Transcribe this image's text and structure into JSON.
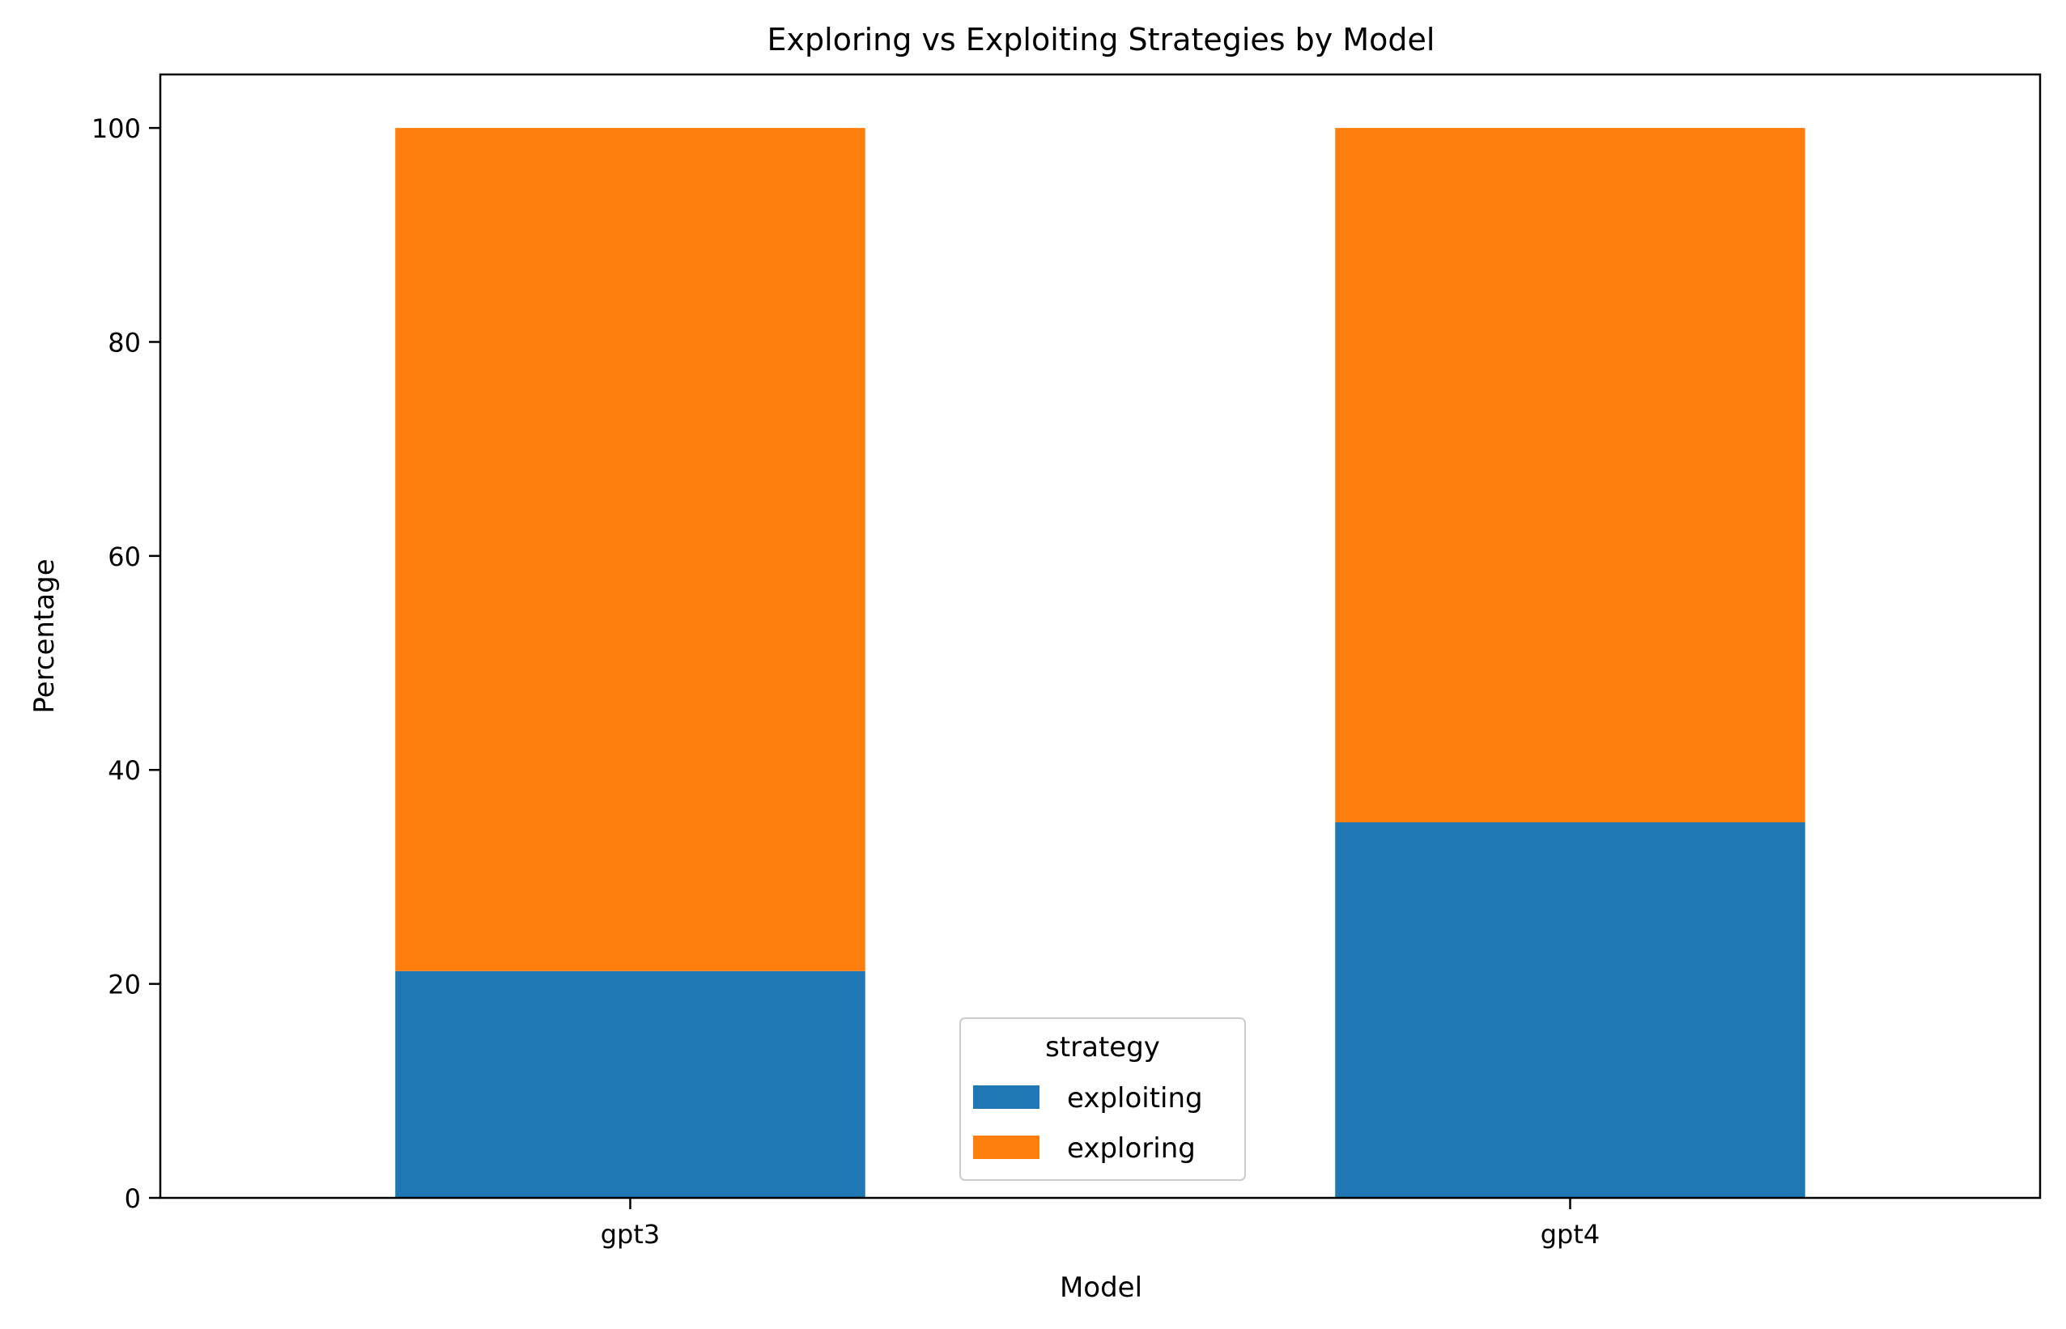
{
  "chart_data": {
    "type": "bar",
    "stacked": true,
    "title": "Exploring vs Exploiting Strategies by Model",
    "xlabel": "Model",
    "ylabel": "Percentage",
    "categories": [
      "gpt3",
      "gpt4"
    ],
    "series": [
      {
        "name": "exploiting",
        "values": [
          21.2,
          35.1
        ],
        "color": "#1f77b4"
      },
      {
        "name": "exploring",
        "values": [
          78.8,
          64.9
        ],
        "color": "#ff7f0e"
      }
    ],
    "ylim": [
      0,
      105
    ],
    "yticks": [
      0,
      20,
      40,
      60,
      80,
      100
    ],
    "grid": false,
    "legend": {
      "title": "strategy",
      "placement": "lower-center"
    }
  }
}
